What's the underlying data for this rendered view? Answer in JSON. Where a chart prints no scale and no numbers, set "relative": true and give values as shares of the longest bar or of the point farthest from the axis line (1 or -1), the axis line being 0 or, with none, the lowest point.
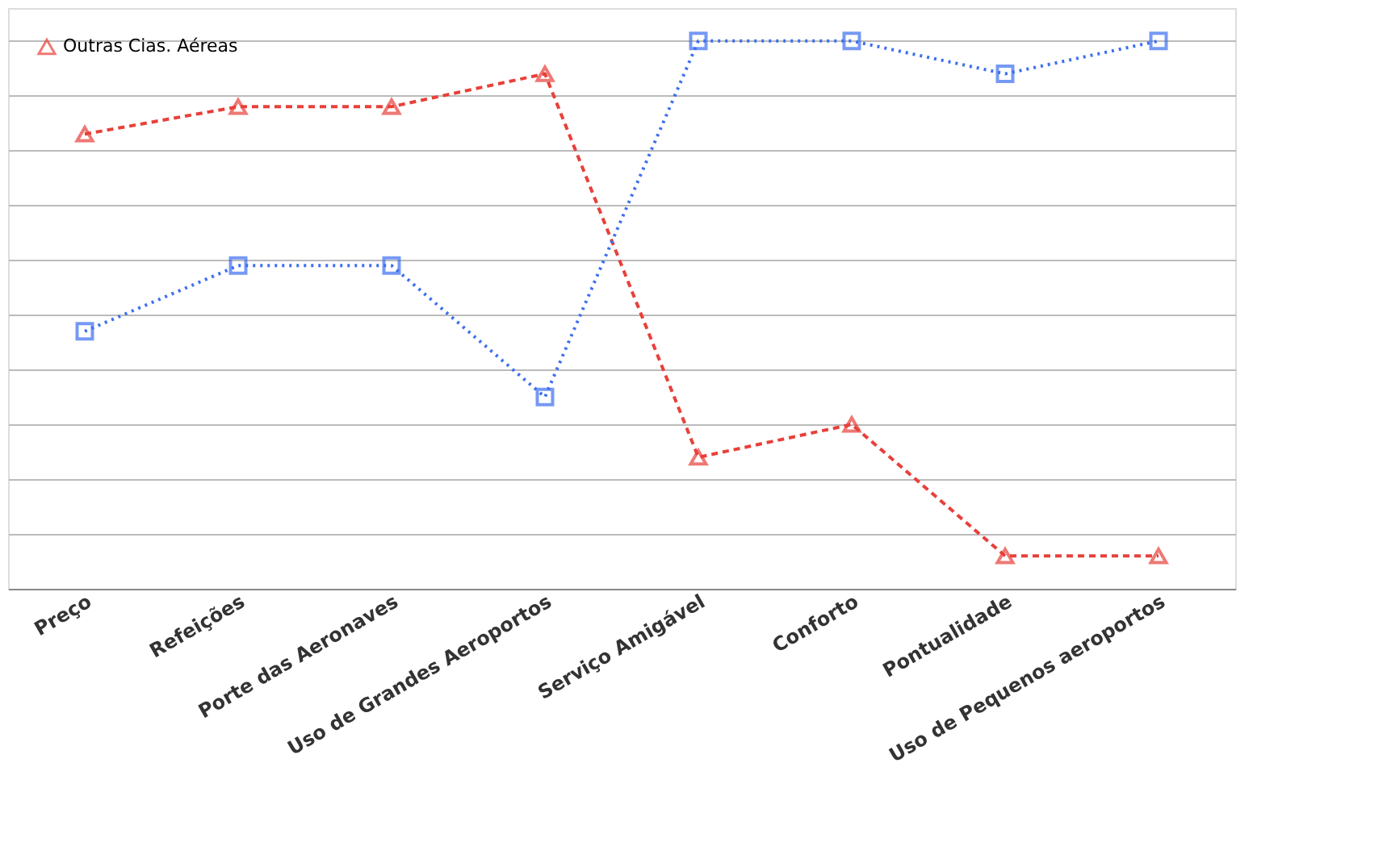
{
  "chart_data": {
    "type": "line",
    "relative": true,
    "categories": [
      "Preço",
      "Refeições",
      "Porte das Aeronaves",
      "Uso de Grandes Aeroportos",
      "Serviço Amigável",
      "Conforto",
      "Pontualidade",
      "Uso de Pequenos aeroportos"
    ],
    "series": [
      {
        "name": "Outras Cias. Aéreas",
        "color": "#e8403a",
        "marker": "triangle",
        "line_style": "dashed",
        "values": [
          0.83,
          0.88,
          0.88,
          0.94,
          0.24,
          0.3,
          0.06,
          0.06
        ]
      },
      {
        "color": "#3d6ff0",
        "marker": "square",
        "line_style": "dotted",
        "values": [
          0.47,
          0.59,
          0.59,
          0.35,
          1,
          1,
          0.94,
          1
        ]
      }
    ],
    "grid": "y",
    "legend": "top left"
  }
}
